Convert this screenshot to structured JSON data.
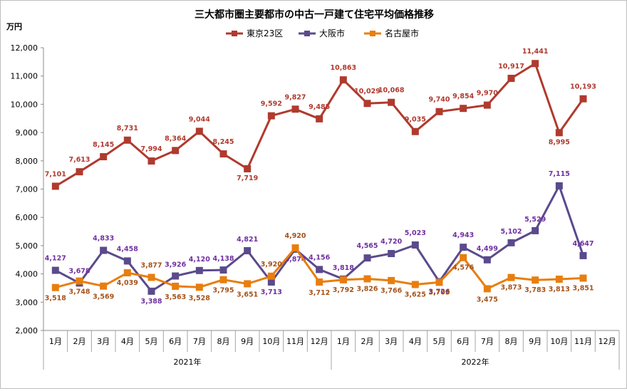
{
  "chart_data": {
    "type": "line",
    "title": "三大都市圏主要都市の中古一戸建て住宅平均価格推移",
    "ylabel": "万円",
    "ylim": [
      2000,
      12000
    ],
    "yticks": [
      2000,
      3000,
      4000,
      5000,
      6000,
      7000,
      8000,
      9000,
      10000,
      11000,
      12000
    ],
    "ytick_labels": [
      "2,000",
      "3,000",
      "4,000",
      "5,000",
      "6,000",
      "7,000",
      "8,000",
      "9,000",
      "10,000",
      "11,000",
      "12,000"
    ],
    "categories": [
      "1月",
      "2月",
      "3月",
      "4月",
      "5月",
      "6月",
      "7月",
      "8月",
      "9月",
      "10月",
      "11月",
      "12月",
      "1月",
      "2月",
      "3月",
      "4月",
      "5月",
      "6月",
      "7月",
      "8月",
      "9月",
      "10月",
      "11月",
      "12月"
    ],
    "year_groups": [
      {
        "label": "2021年",
        "start": 0,
        "end": 11
      },
      {
        "label": "2022年",
        "start": 12,
        "end": 23
      }
    ],
    "legend_position": "top",
    "grid": false,
    "series": [
      {
        "name": "東京23区",
        "color": "#b03a2e",
        "values": [
          7101,
          7613,
          8145,
          8731,
          7994,
          8364,
          9044,
          8245,
          7719,
          9592,
          9827,
          9485,
          10863,
          10029,
          10068,
          9035,
          9740,
          9854,
          9970,
          10917,
          11441,
          8995,
          10193,
          null
        ],
        "labels": [
          "7,101",
          "7,613",
          "8,145",
          "8,731",
          "7,994",
          "8,364",
          "9,044",
          "8,245",
          "7,719",
          "9,592",
          "9,827",
          "9,485",
          "10,863",
          "10,029",
          "10,068",
          "9,035",
          "9,740",
          "9,854",
          "9,970",
          "10,917",
          "11,441",
          "8,995",
          "10,193",
          ""
        ]
      },
      {
        "name": "大阪市",
        "color": "#5b4a8c",
        "label_color": "#7030a0",
        "values": [
          4127,
          3678,
          4833,
          4458,
          3388,
          3926,
          4120,
          4138,
          4821,
          3713,
          4874,
          4156,
          3818,
          4565,
          4720,
          5023,
          3726,
          4943,
          4499,
          5102,
          5529,
          7115,
          4647,
          null
        ],
        "labels": [
          "4,127",
          "3,678",
          "4,833",
          "4,458",
          "3,388",
          "3,926",
          "4,120",
          "4,138",
          "4,821",
          "3,713",
          "4,874",
          "4,156",
          "3,818",
          "4,565",
          "4,720",
          "5,023",
          "3,726",
          "4,943",
          "4,499",
          "5,102",
          "5,529",
          "7,115",
          "4,647",
          ""
        ]
      },
      {
        "name": "名古屋市",
        "color": "#e87e0e",
        "label_color": "#a5521a",
        "values": [
          3518,
          3748,
          3569,
          4039,
          3877,
          3563,
          3528,
          3795,
          3651,
          3920,
          4920,
          3712,
          3792,
          3826,
          3766,
          3625,
          3703,
          4576,
          3475,
          3873,
          3783,
          3813,
          3851,
          null
        ],
        "labels": [
          "3,518",
          "3,748",
          "3,569",
          "4,039",
          "3,877",
          "3,563",
          "3,528",
          "3,795",
          "3,651",
          "3,920",
          "4,920",
          "3,712",
          "3,792",
          "3,826",
          "3,766",
          "3,625",
          "3,703",
          "4,576",
          "3,475",
          "3,873",
          "3,783",
          "3,813",
          "3,851",
          ""
        ]
      }
    ]
  }
}
